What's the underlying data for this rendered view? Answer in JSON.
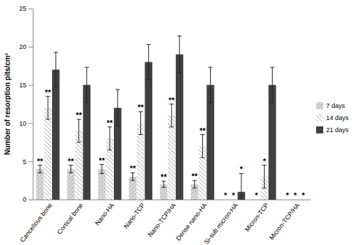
{
  "chart_data": {
    "type": "bar",
    "y_label": "Number of resorption pits/cm²",
    "categories": [
      "Cancellous bone",
      "Cortical bone",
      "Nano-HA",
      "Nano-TCP",
      "Nano-TCP/HA",
      "Dense nano-HA",
      "Si-sub micron-HA",
      "Micron-TCP",
      "Micron-TCP/HA"
    ],
    "series": [
      {
        "name": "7 days",
        "color": "#c8c8c8",
        "values": [
          4,
          4,
          4,
          3,
          2,
          2,
          0,
          0,
          0
        ],
        "errors": [
          0.5,
          0.5,
          0.6,
          0.5,
          0.4,
          0.5,
          null,
          null,
          null
        ],
        "significance": [
          "**",
          "**",
          "**",
          "**",
          "**",
          "**",
          "*",
          "*",
          "*"
        ]
      },
      {
        "name": "14 days",
        "color": "#a8a8a8",
        "values": [
          12,
          9,
          8,
          10,
          11,
          7,
          0,
          3,
          0
        ],
        "errors": [
          1.5,
          1.5,
          1.5,
          1.5,
          1.5,
          1.5,
          null,
          1.5,
          null
        ],
        "significance": [
          "**",
          "**",
          "**",
          "**",
          "**",
          "**",
          "*",
          "*",
          "*"
        ]
      },
      {
        "name": "21 days",
        "color": "#404040",
        "values": [
          17,
          15,
          12,
          18,
          19,
          15,
          1,
          15,
          0
        ],
        "errors": [
          2.3,
          2.3,
          2.4,
          2.3,
          2.4,
          2.3,
          2.4,
          2.3,
          null
        ],
        "significance": [
          null,
          null,
          null,
          null,
          null,
          null,
          "*",
          null,
          "*"
        ]
      }
    ],
    "ylim": [
      0,
      25
    ],
    "yticks": [
      0,
      5,
      10,
      15,
      20,
      25
    ],
    "grid": false,
    "legend": "right"
  }
}
